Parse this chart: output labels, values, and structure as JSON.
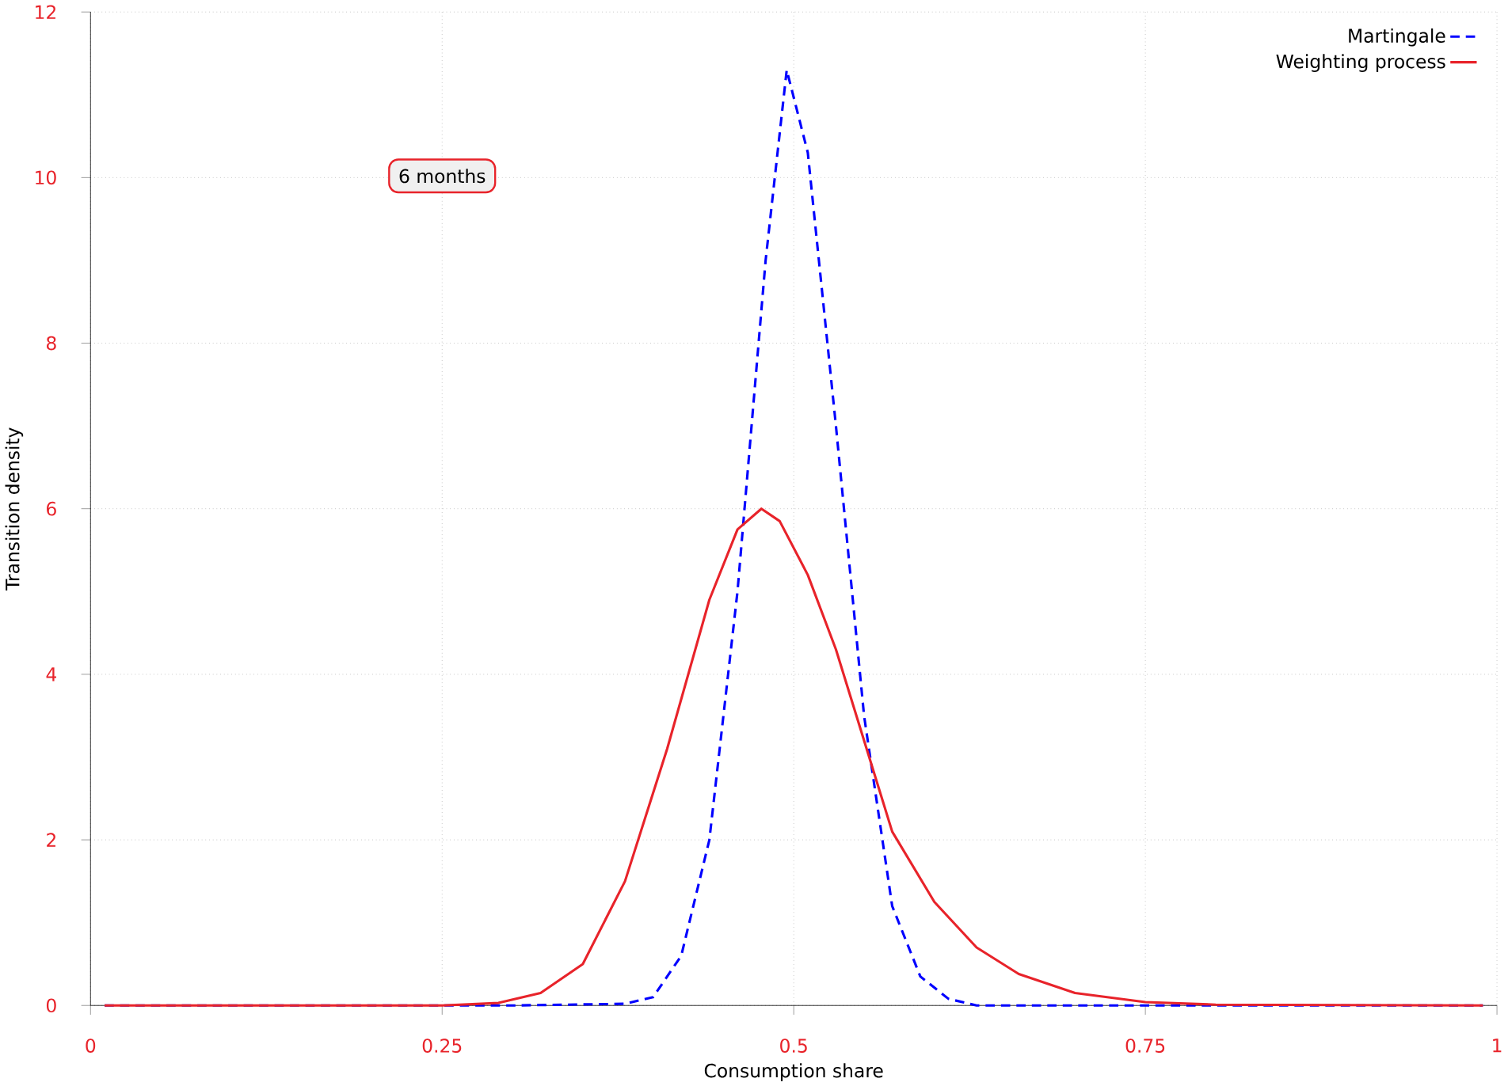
{
  "chart_data": {
    "type": "line",
    "xlabel": "Consumption share",
    "ylabel": "Transition density",
    "annotations": [
      "6 months"
    ],
    "xlim": [
      0,
      1
    ],
    "ylim": [
      0,
      12
    ],
    "xticks": [
      0,
      0.25,
      0.5,
      0.75,
      1
    ],
    "yticks": [
      0,
      2,
      4,
      6,
      8,
      10,
      12
    ],
    "grid": true,
    "legend": "top right",
    "marker": "none",
    "series": [
      {
        "name": "Martingale",
        "color": "#0000ff",
        "line_style": "dashed",
        "x": [
          0.01,
          0.3,
          0.38,
          0.4,
          0.42,
          0.44,
          0.46,
          0.48,
          0.495,
          0.51,
          0.53,
          0.55,
          0.57,
          0.59,
          0.61,
          0.63,
          0.99
        ],
        "values": [
          0,
          0,
          0.02,
          0.1,
          0.6,
          2.0,
          5.0,
          9.0,
          11.3,
          10.3,
          7.0,
          3.5,
          1.2,
          0.35,
          0.08,
          0,
          0
        ]
      },
      {
        "name": "Weighting process",
        "color": "#e8232a",
        "line_style": "solid",
        "x": [
          0.01,
          0.25,
          0.29,
          0.32,
          0.35,
          0.38,
          0.41,
          0.44,
          0.46,
          0.477,
          0.49,
          0.51,
          0.53,
          0.55,
          0.57,
          0.6,
          0.63,
          0.66,
          0.7,
          0.75,
          0.8,
          0.99
        ],
        "values": [
          0,
          0,
          0.03,
          0.15,
          0.5,
          1.5,
          3.1,
          4.9,
          5.75,
          6.0,
          5.85,
          5.2,
          4.3,
          3.2,
          2.1,
          1.25,
          0.7,
          0.38,
          0.15,
          0.04,
          0.01,
          0
        ]
      }
    ]
  }
}
